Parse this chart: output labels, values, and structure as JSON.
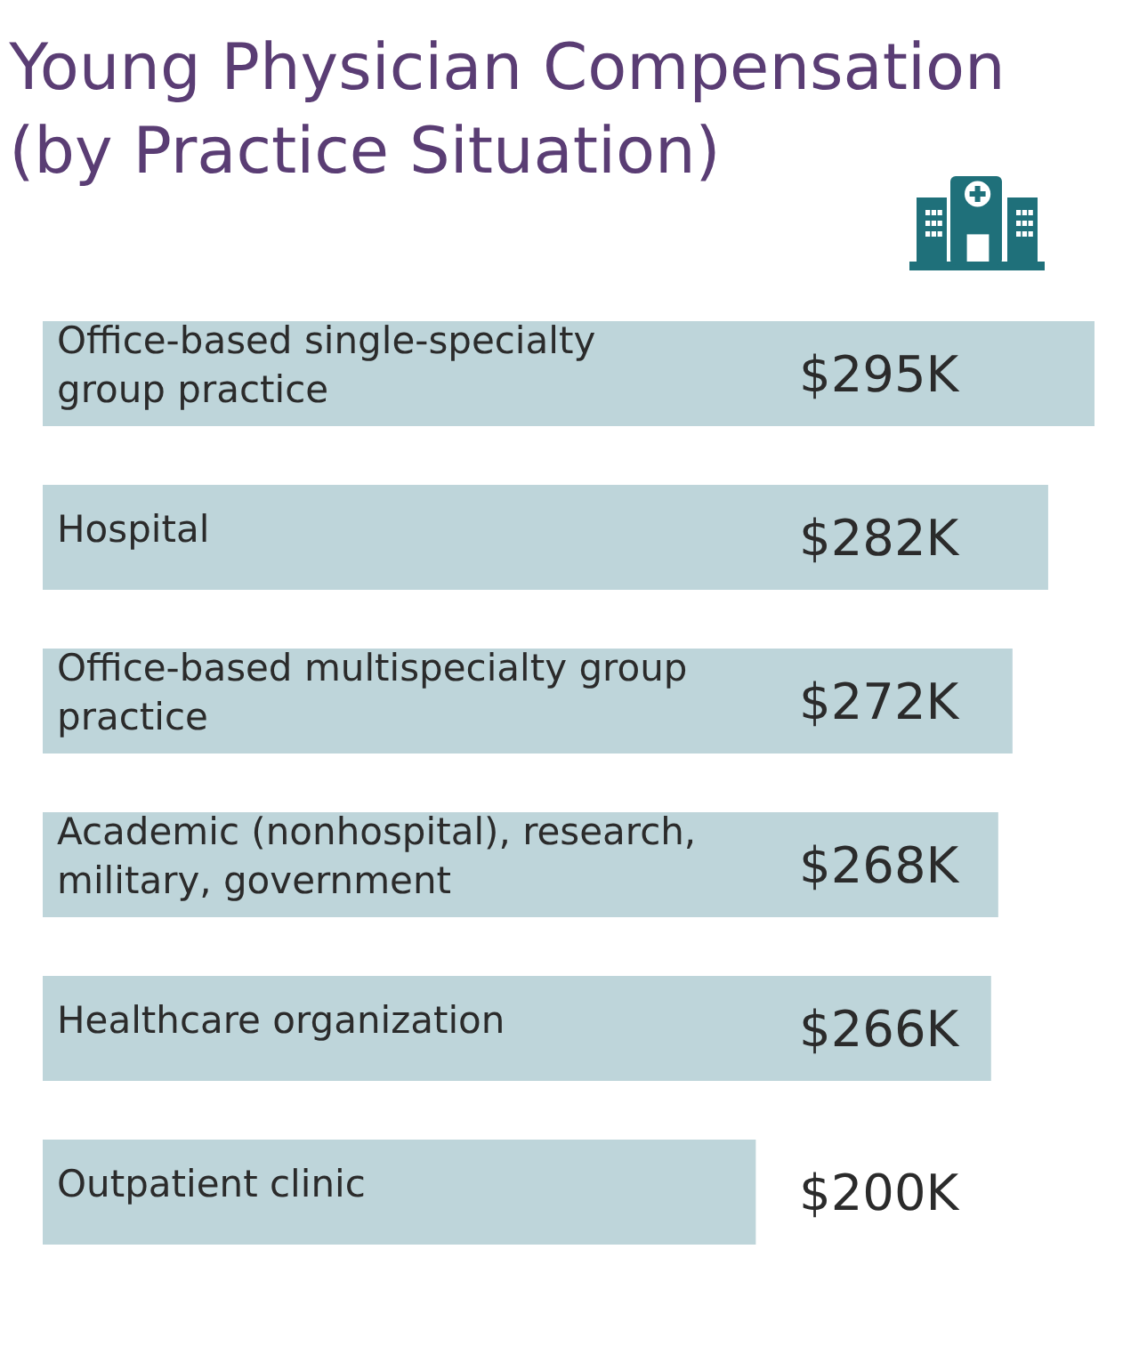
{
  "chart_data": {
    "type": "bar",
    "orientation": "horizontal",
    "title": "Young Physician Compensation (by Practice Situation)",
    "categories": [
      "Office-based single-specialty group practice",
      "Hospital",
      "Office-based multispecialty group practice",
      "Academic (nonhospital), research, military, government",
      "Healthcare organization",
      "Outpatient clinic"
    ],
    "values": [
      295,
      282,
      272,
      268,
      266,
      200
    ],
    "color": "#bed5da",
    "value_labels": [
      "$295K",
      "$282K",
      "$272K",
      "$268K",
      "$266K",
      "$200K"
    ]
  }
}
